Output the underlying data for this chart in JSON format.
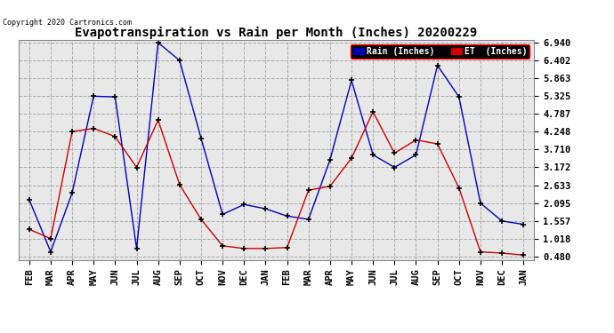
{
  "title": "Evapotranspiration vs Rain per Month (Inches) 20200229",
  "copyright": "Copyright 2020 Cartronics.com",
  "months": [
    "FEB",
    "MAR",
    "APR",
    "MAY",
    "JUN",
    "JUL",
    "AUG",
    "SEP",
    "OCT",
    "NOV",
    "DEC",
    "JAN",
    "FEB",
    "MAR",
    "APR",
    "MAY",
    "JUN",
    "JUL",
    "AUG",
    "SEP",
    "OCT",
    "NOV",
    "DEC",
    "JAN"
  ],
  "rain": [
    2.2,
    0.62,
    2.4,
    5.32,
    5.3,
    0.72,
    6.94,
    6.4,
    4.05,
    1.75,
    2.05,
    1.92,
    1.7,
    1.6,
    3.4,
    5.8,
    3.55,
    3.17,
    3.55,
    6.25,
    5.3,
    2.09,
    1.55,
    1.45
  ],
  "et": [
    1.3,
    1.02,
    4.25,
    4.35,
    4.1,
    3.17,
    4.6,
    2.65,
    1.6,
    0.8,
    0.72,
    0.72,
    0.75,
    2.48,
    2.6,
    3.45,
    4.85,
    3.6,
    4.0,
    3.88,
    2.55,
    0.62,
    0.58,
    0.52
  ],
  "yticks": [
    0.48,
    1.018,
    1.557,
    2.095,
    2.633,
    3.172,
    3.71,
    4.248,
    4.787,
    5.325,
    5.863,
    6.402,
    6.94
  ],
  "ymin": 0.48,
  "ymax": 6.94,
  "rain_color": "#0000bb",
  "et_color": "#cc0000",
  "bg_color": "#e8e8e8",
  "grid_color": "#aaaaaa",
  "title_fontsize": 10,
  "tick_fontsize": 7.5,
  "legend_rain_label": "Rain (Inches)",
  "legend_et_label": "ET  (Inches)"
}
